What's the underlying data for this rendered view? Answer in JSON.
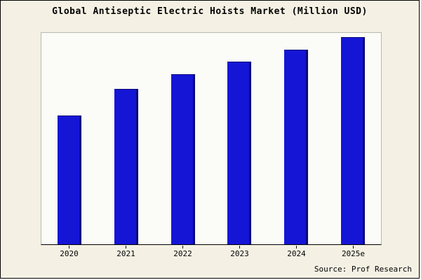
{
  "title": "Global Antiseptic Electric Hoists Market (Million USD)",
  "source": "Source: Prof Research",
  "colors": {
    "bar": "#1515d6",
    "bar_edge": "#0a0a78",
    "outer_bg": "#f4f1e4",
    "plot_bg": "#fbfbf7"
  },
  "chart_data": {
    "type": "bar",
    "categories": [
      "2020",
      "2021",
      "2022",
      "2023",
      "2024",
      "2025e"
    ],
    "values": [
      62,
      75,
      82,
      88,
      94,
      100
    ],
    "title": "Global Antiseptic Electric Hoists Market (Million USD)",
    "xlabel": "",
    "ylabel": "",
    "ylim": [
      0,
      102
    ],
    "grid": false,
    "legend": false,
    "bar_color": "#1515d6"
  }
}
